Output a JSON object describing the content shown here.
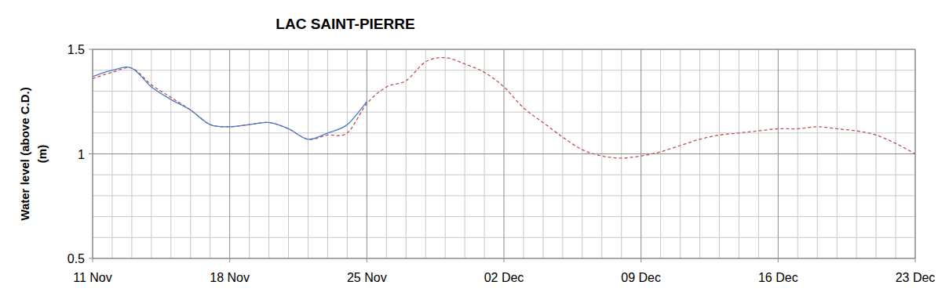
{
  "chart_data": {
    "type": "line",
    "title": "LAC SAINT-PIERRE",
    "y_label": "Water level (above C.D.)\n(m)",
    "categories": [
      "11 Nov",
      null,
      null,
      null,
      null,
      null,
      null,
      "18 Nov",
      null,
      null,
      null,
      null,
      null,
      null,
      "25 Nov",
      null,
      null,
      null,
      null,
      null,
      null,
      "02 Dec",
      null,
      null,
      null,
      null,
      null,
      null,
      "09 Dec",
      null,
      null,
      null,
      null,
      null,
      null,
      "16 Dec",
      null,
      null,
      null,
      null,
      null,
      null,
      "23 Dec"
    ],
    "series": [
      {
        "color": "#4a7bd0",
        "line_style": "solid",
        "values": [
          1.37,
          1.4,
          1.41,
          1.32,
          1.26,
          1.21,
          1.14,
          1.13,
          1.14,
          1.15,
          1.12,
          1.07,
          1.1,
          1.14,
          1.25,
          null,
          null,
          null,
          null,
          null,
          null,
          null,
          null,
          null,
          null,
          null,
          null,
          null,
          null,
          null,
          null,
          null,
          null,
          null,
          null,
          null,
          null,
          null,
          null,
          null,
          null,
          null,
          null
        ]
      },
      {
        "color": "#c0504d",
        "line_style": "dashed",
        "values": [
          1.36,
          1.39,
          1.41,
          1.33,
          1.27,
          1.21,
          1.14,
          1.13,
          1.14,
          1.15,
          1.12,
          1.07,
          1.09,
          1.1,
          1.24,
          1.32,
          1.35,
          1.44,
          1.46,
          1.43,
          1.39,
          1.32,
          1.22,
          1.15,
          1.08,
          1.02,
          0.99,
          0.98,
          0.99,
          1.01,
          1.04,
          1.07,
          1.09,
          1.1,
          1.11,
          1.12,
          1.12,
          1.13,
          1.12,
          1.11,
          1.09,
          1.05,
          1.0
        ]
      }
    ],
    "ylim": [
      0.5,
      1.5
    ],
    "yticks": [
      0.5,
      1,
      1.5
    ],
    "grid": true
  }
}
